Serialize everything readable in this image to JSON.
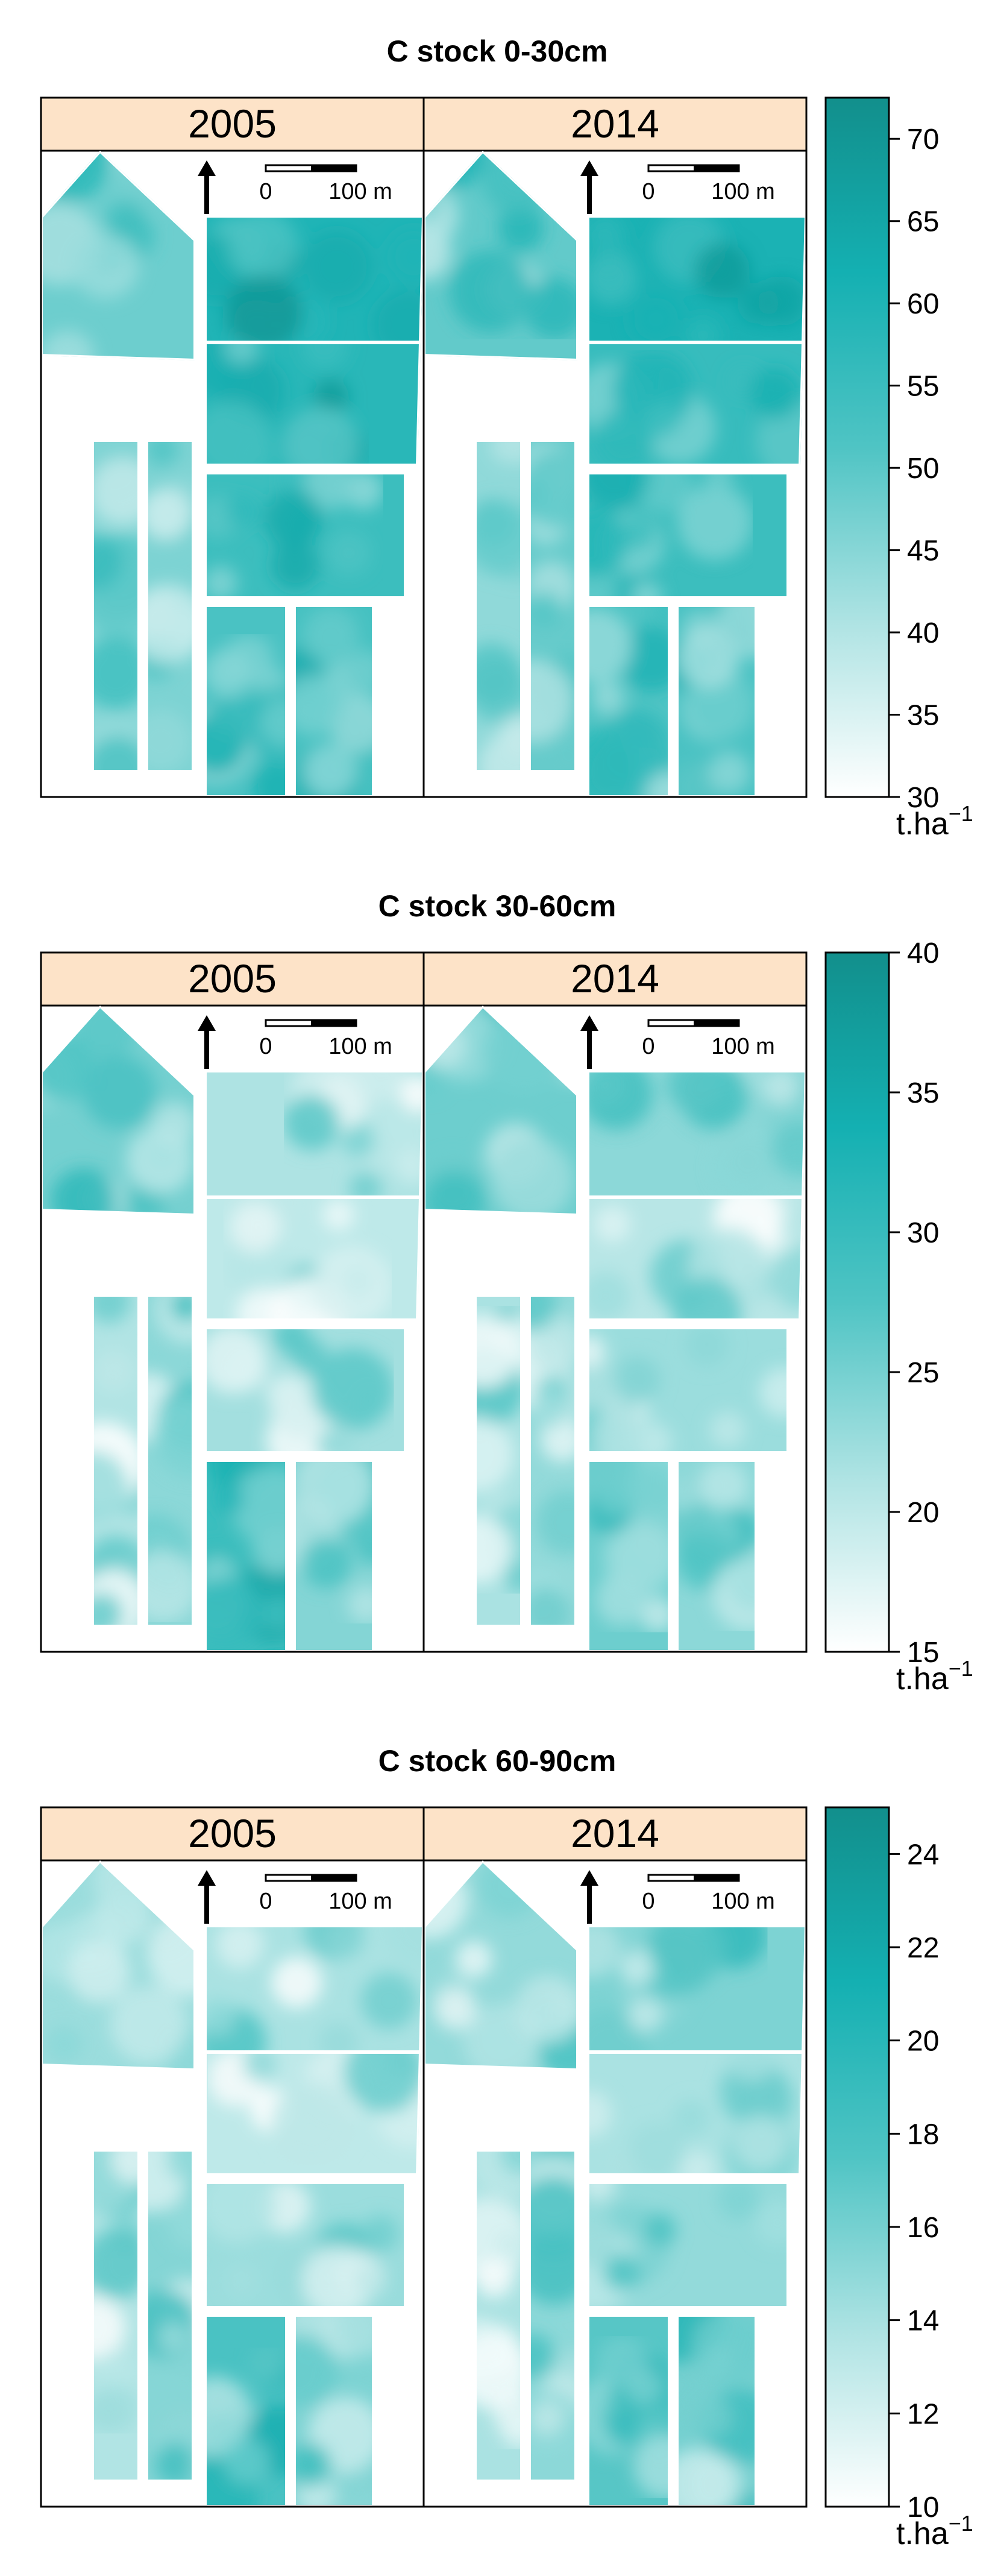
{
  "figure": {
    "panels": [
      {
        "title": "C stock 0-30cm",
        "years": [
          "2005",
          "2014"
        ],
        "scale_labels": [
          "0",
          "100 m"
        ],
        "colorbar": {
          "min": 30,
          "max": 72.5,
          "ticks": [
            30,
            35,
            40,
            45,
            50,
            55,
            60,
            65,
            70
          ]
        },
        "unit_base": "t.ha",
        "unit_exp": "−1",
        "fields": {
          "2005": {
            "nw": 0.42,
            "ne_top": 0.7,
            "ne_mid": 0.66,
            "ne_bot": 0.58,
            "strip_l": 0.35,
            "strip_r": 0.38,
            "sw_l": 0.52,
            "sw_r": 0.54
          },
          "2014": {
            "nw": 0.45,
            "ne_top": 0.72,
            "ne_mid": 0.6,
            "ne_bot": 0.58,
            "strip_l": 0.33,
            "strip_r": 0.44,
            "sw_l": 0.5,
            "sw_r": 0.52
          }
        }
      },
      {
        "title": "C stock 30-60cm",
        "years": [
          "2005",
          "2014"
        ],
        "scale_labels": [
          "0",
          "100 m"
        ],
        "colorbar": {
          "min": 15,
          "max": 40,
          "ticks": [
            15,
            20,
            25,
            30,
            35,
            40
          ]
        },
        "unit_base": "t.ha",
        "unit_exp": "−1",
        "fields": {
          "2005": {
            "nw": 0.4,
            "ne_top": 0.25,
            "ne_mid": 0.2,
            "ne_bot": 0.28,
            "strip_l": 0.24,
            "strip_r": 0.34,
            "sw_l": 0.58,
            "sw_r": 0.36
          },
          "2014": {
            "nw": 0.42,
            "ne_top": 0.34,
            "ne_mid": 0.22,
            "ne_bot": 0.3,
            "strip_l": 0.26,
            "strip_r": 0.32,
            "sw_l": 0.42,
            "sw_r": 0.34
          }
        }
      },
      {
        "title": "C stock 60-90cm",
        "years": [
          "2005",
          "2014"
        ],
        "scale_labels": [
          "0",
          "100 m"
        ],
        "colorbar": {
          "min": 10,
          "max": 25,
          "ticks": [
            10,
            12,
            14,
            16,
            18,
            20,
            22,
            24
          ]
        },
        "unit_base": "t.ha",
        "unit_exp": "−1",
        "fields": {
          "2005": {
            "nw": 0.3,
            "ne_top": 0.26,
            "ne_mid": 0.2,
            "ne_bot": 0.3,
            "strip_l": 0.24,
            "strip_r": 0.36,
            "sw_l": 0.52,
            "sw_r": 0.38
          },
          "2014": {
            "nw": 0.32,
            "ne_top": 0.38,
            "ne_mid": 0.26,
            "ne_bot": 0.32,
            "strip_l": 0.26,
            "strip_r": 0.34,
            "sw_l": 0.48,
            "sw_r": 0.4
          }
        }
      }
    ]
  },
  "colors": {
    "header_bg": "#fde3c8",
    "ramp": [
      "#ffffff",
      "#aee3e3",
      "#4fc4c4",
      "#14b0b2",
      "#128f8c"
    ],
    "frame": "#000000"
  }
}
